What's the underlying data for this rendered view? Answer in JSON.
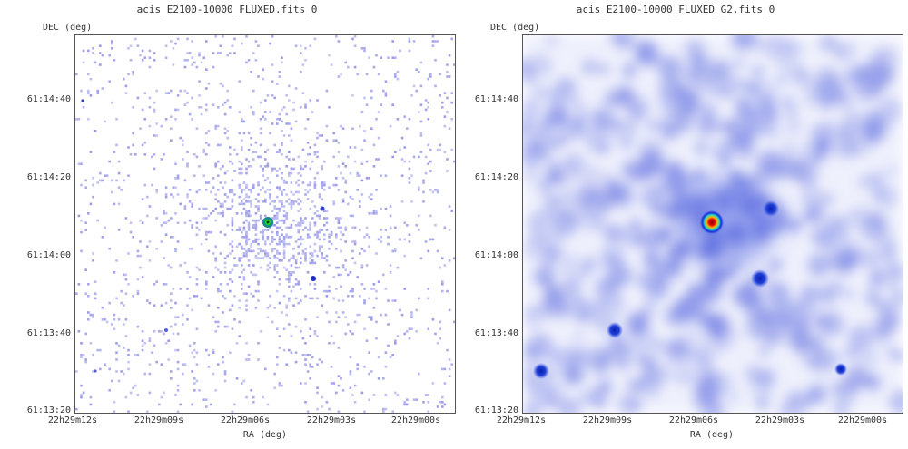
{
  "panels": [
    {
      "title": "acis_E2100-10000_FLUXED.fits_0",
      "ylabel": "DEC (deg)",
      "xlabel": "RA (deg)",
      "yticks": [
        "61:14:40",
        "61:14:20",
        "61:14:00",
        "61:13:40",
        "61:13:20"
      ],
      "xticks": [
        "22h29m12s",
        "22h29m09s",
        "22h29m06s",
        "22h29m03s",
        "22h29m00s"
      ]
    },
    {
      "title": "acis_E2100-10000_FLUXED_G2.fits_0",
      "ylabel": "DEC (deg)",
      "xlabel": "RA (deg)",
      "yticks": [
        "61:14:40",
        "61:14:20",
        "61:14:00",
        "61:13:40",
        "61:13:20"
      ],
      "xticks": [
        "22h29m12s",
        "22h29m09s",
        "22h29m06s",
        "22h29m03s",
        "22h29m00s"
      ]
    }
  ],
  "colors": {
    "pixel": "#9a9ae8",
    "smooth_bg": "#dfe2fa",
    "source_core": "#c00000",
    "source_ring": "#ffd000"
  }
}
